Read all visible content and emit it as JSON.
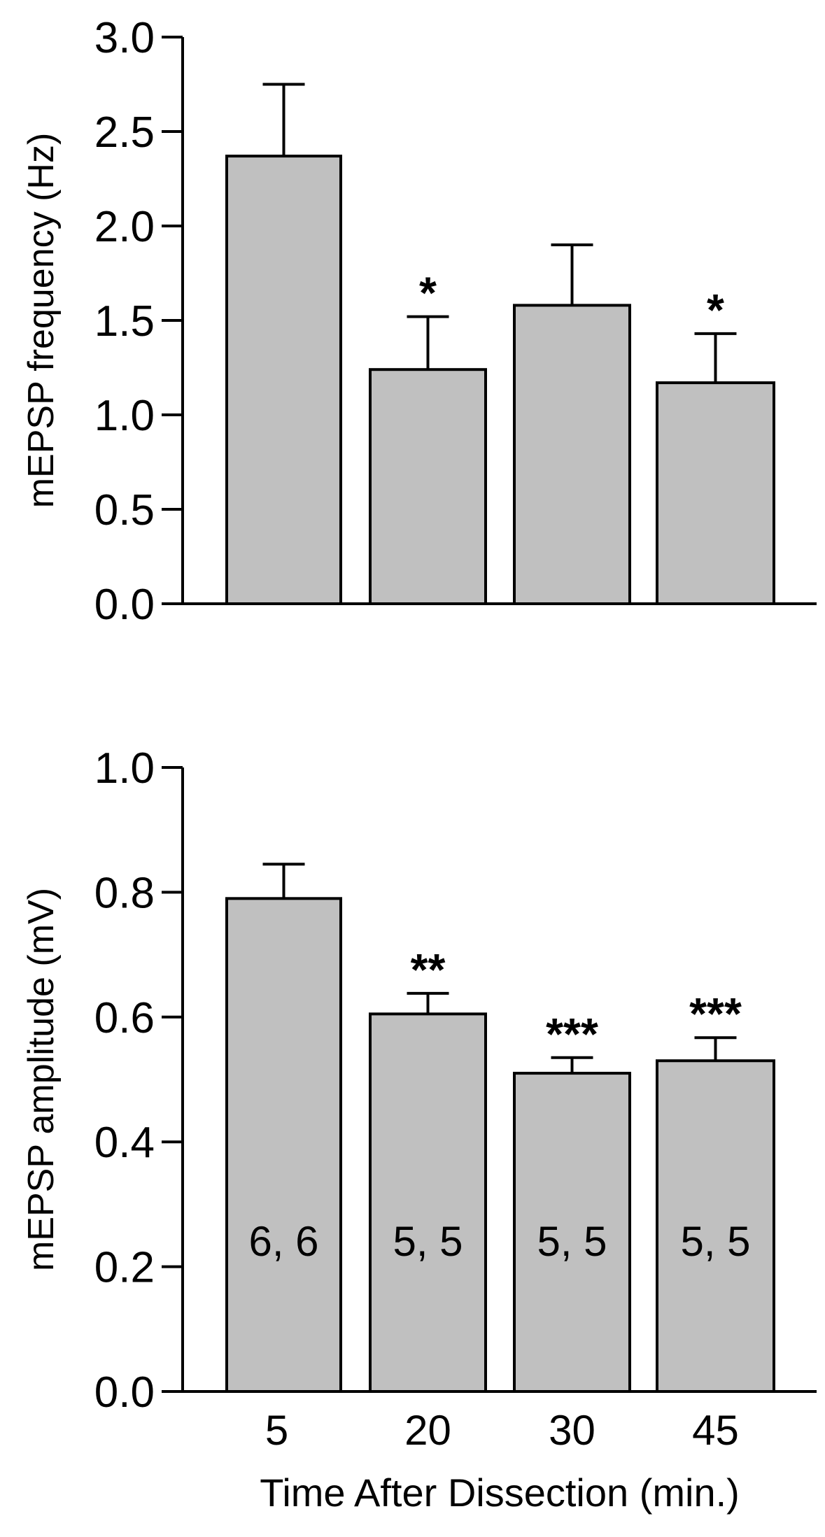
{
  "chart_data": [
    {
      "type": "bar",
      "title": "",
      "xlabel": "",
      "ylabel": "mEPSP frequency (Hz)",
      "ylim": [
        0,
        3.0
      ],
      "yticks": [
        "0.0",
        "0.5",
        "1.0",
        "1.5",
        "2.0",
        "2.5",
        "3.0"
      ],
      "categories": [
        "5",
        "20",
        "30",
        "45"
      ],
      "values": [
        2.37,
        1.24,
        1.58,
        1.17
      ],
      "error_upper": [
        2.75,
        1.52,
        1.9,
        1.43
      ],
      "annotations": [
        "",
        "*",
        "",
        "*"
      ],
      "bar_labels": [
        "",
        "",
        "",
        ""
      ],
      "grid": false,
      "bar_color": "#c0c0c0"
    },
    {
      "type": "bar",
      "title": "",
      "xlabel": "Time After Dissection (min.)",
      "ylabel": "mEPSP amplitude (mV)",
      "ylim": [
        0,
        1.0
      ],
      "yticks": [
        "0.0",
        "0.2",
        "0.4",
        "0.6",
        "0.8",
        "1.0"
      ],
      "categories": [
        "5",
        "20",
        "30",
        "45"
      ],
      "values": [
        0.79,
        0.605,
        0.51,
        0.53
      ],
      "error_upper": [
        0.845,
        0.638,
        0.535,
        0.567
      ],
      "annotations": [
        "",
        "**",
        "***",
        "***"
      ],
      "bar_labels": [
        "6, 6",
        "5, 5",
        "5, 5",
        "5, 5"
      ],
      "grid": false,
      "bar_color": "#c0c0c0"
    }
  ]
}
